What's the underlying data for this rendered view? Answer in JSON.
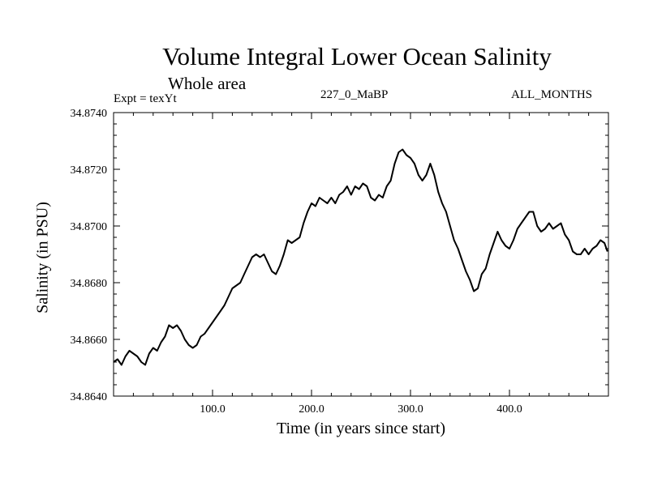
{
  "header": {
    "title": "Volume Integral Lower Ocean Salinity",
    "subtitle": "Whole area",
    "expt_label": "Expt = texYt",
    "center_label": "227_0_MaBP",
    "right_label": "ALL_MONTHS"
  },
  "chart_data": {
    "type": "line",
    "title": "Volume Integral Lower Ocean Salinity",
    "subtitle": "Whole area",
    "xlabel": "Time (in years since start)",
    "ylabel": "Salinity (in PSU)",
    "xlim": [
      0,
      500
    ],
    "ylim": [
      34.864,
      34.874
    ],
    "x_ticks": [
      100,
      200,
      300,
      400
    ],
    "x_tick_labels": [
      "100.0",
      "200.0",
      "300.0",
      "400.0"
    ],
    "y_ticks": [
      34.864,
      34.866,
      34.868,
      34.87,
      34.872,
      34.874
    ],
    "y_tick_labels": [
      "34.8640",
      "34.8660",
      "34.8680",
      "34.8700",
      "34.8720",
      "34.8740"
    ],
    "grid": false,
    "line_color": "#000000",
    "series": [
      {
        "x": [
          0,
          4,
          8,
          12,
          16,
          20,
          24,
          28,
          32,
          36,
          40,
          44,
          48,
          52,
          56,
          60,
          64,
          68,
          72,
          76,
          80,
          84,
          88,
          92,
          96,
          100,
          104,
          108,
          112,
          116,
          120,
          124,
          128,
          132,
          136,
          140,
          144,
          148,
          152,
          156,
          160,
          164,
          168,
          172,
          176,
          180,
          184,
          188,
          192,
          196,
          200,
          204,
          208,
          212,
          216,
          220,
          224,
          228,
          232,
          236,
          240,
          244,
          248,
          252,
          256,
          260,
          264,
          268,
          272,
          276,
          280,
          284,
          288,
          292,
          296,
          300,
          304,
          308,
          312,
          316,
          320,
          324,
          328,
          332,
          336,
          340,
          344,
          348,
          352,
          356,
          360,
          364,
          368,
          372,
          376,
          380,
          384,
          388,
          392,
          396,
          400,
          404,
          408,
          412,
          416,
          420,
          424,
          428,
          432,
          436,
          440,
          444,
          448,
          452,
          456,
          460,
          464,
          468,
          472,
          476,
          480,
          484,
          488,
          492,
          496,
          499
        ],
        "values": [
          34.8652,
          34.8653,
          34.8651,
          34.8654,
          34.8656,
          34.8655,
          34.8654,
          34.8652,
          34.8651,
          34.8655,
          34.8657,
          34.8656,
          34.8659,
          34.8661,
          34.8665,
          34.8664,
          34.8665,
          34.8663,
          34.866,
          34.8658,
          34.8657,
          34.8658,
          34.8661,
          34.8662,
          34.8664,
          34.8666,
          34.8668,
          34.867,
          34.8672,
          34.8675,
          34.8678,
          34.8679,
          34.868,
          34.8683,
          34.8686,
          34.8689,
          34.869,
          34.8689,
          34.869,
          34.8687,
          34.8684,
          34.8683,
          34.8686,
          34.869,
          34.8695,
          34.8694,
          34.8695,
          34.8696,
          34.8701,
          34.8705,
          34.8708,
          34.8707,
          34.871,
          34.8709,
          34.8708,
          34.871,
          34.8708,
          34.8711,
          34.8712,
          34.8714,
          34.8711,
          34.8714,
          34.8713,
          34.8715,
          34.8714,
          34.871,
          34.8709,
          34.8711,
          34.871,
          34.8714,
          34.8716,
          34.8722,
          34.8726,
          34.8727,
          34.8725,
          34.8724,
          34.8722,
          34.8718,
          34.8716,
          34.8718,
          34.8722,
          34.8718,
          34.8712,
          34.8708,
          34.8705,
          34.87,
          34.8695,
          34.8692,
          34.8688,
          34.8684,
          34.8681,
          34.8677,
          34.8678,
          34.8683,
          34.8685,
          34.869,
          34.8694,
          34.8698,
          34.8695,
          34.8693,
          34.8692,
          34.8695,
          34.8699,
          34.8701,
          34.8703,
          34.8705,
          34.8705,
          34.87,
          34.8698,
          34.8699,
          34.8701,
          34.8699,
          34.87,
          34.8701,
          34.8697,
          34.8695,
          34.8691,
          34.869,
          34.869,
          34.8692,
          34.869,
          34.8692,
          34.8693,
          34.8695,
          34.8694,
          34.8691
        ]
      }
    ]
  }
}
